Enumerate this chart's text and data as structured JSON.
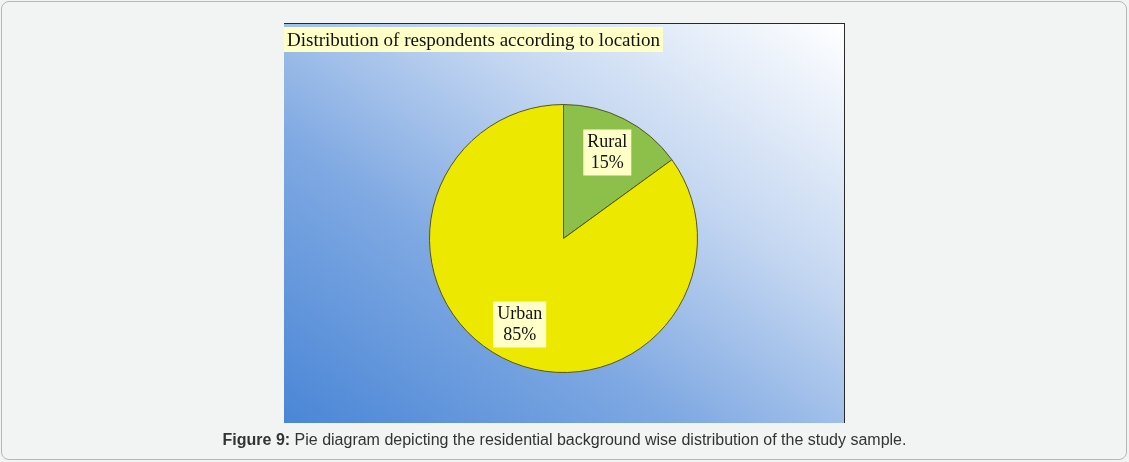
{
  "chart_data": {
    "type": "pie",
    "title": "Distribution of respondents according to location",
    "categories": [
      "Rural",
      "Urban"
    ],
    "values": [
      15,
      85
    ],
    "value_labels": [
      "15%",
      "85%"
    ],
    "colors": [
      "#8cc04b",
      "#ede800"
    ],
    "annotations": [
      "Figure 9: Pie diagram depicting the residential background wise distribution of the study sample."
    ]
  }
}
